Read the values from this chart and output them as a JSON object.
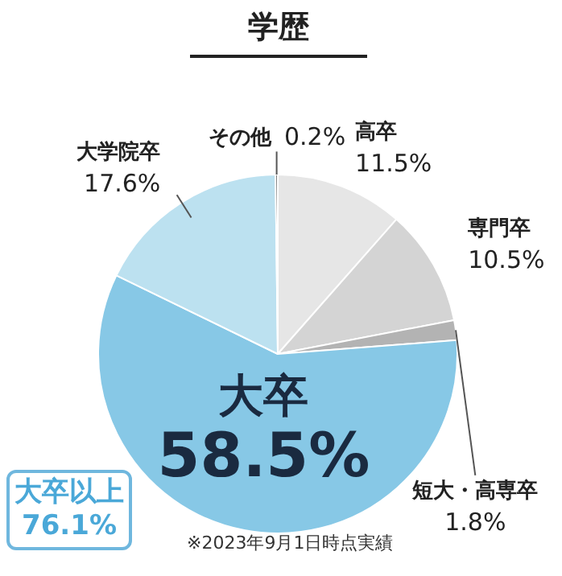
{
  "chart_data": {
    "type": "pie",
    "title": "学歴",
    "categories": [
      "高卒",
      "専門卒",
      "短大・高専卒",
      "大卒",
      "大学院卒",
      "その他"
    ],
    "values": [
      11.5,
      10.5,
      1.8,
      58.5,
      17.6,
      0.2
    ],
    "colors": [
      "#e6e6e6",
      "#d4d4d4",
      "#b3b3b3",
      "#87c8e6",
      "#bce1f0",
      "#555555"
    ],
    "value_labels": [
      "11.5%",
      "10.5%",
      "1.8%",
      "58.5%",
      "17.6%",
      "0.2%"
    ],
    "legend": false,
    "annotations": [
      "大卒以上 76.1%",
      "※2023年9月1日時点実績"
    ]
  }
}
